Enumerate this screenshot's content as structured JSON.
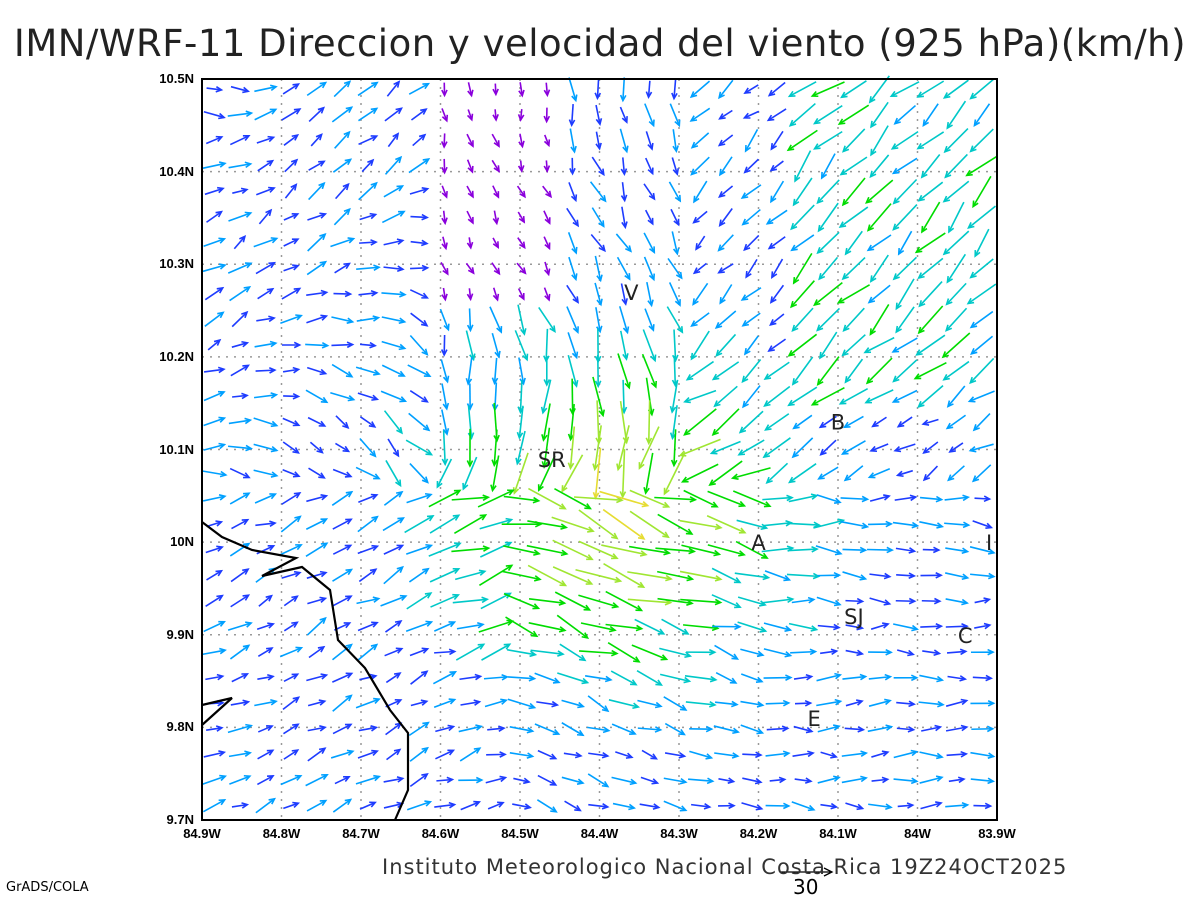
{
  "title": "IMN/WRF-11 Direccion y velocidad del viento (925 hPa)(km/h)",
  "credit": "Instituto Meteorologico Nacional Costa Rica 19Z24OCT2025",
  "software": "GrADS/COLA",
  "reference_vector": {
    "label": "30",
    "value": 30
  },
  "map": {
    "lon_range": [
      -84.9,
      -83.9
    ],
    "lat_range": [
      9.7,
      10.5
    ],
    "x_ticks": [
      "84.9W",
      "84.8W",
      "84.7W",
      "84.6W",
      "84.5W",
      "84.4W",
      "84.3W",
      "84.2W",
      "84.1W",
      "84W",
      "83.9W"
    ],
    "y_ticks": [
      "10.5N",
      "10.4N",
      "10.3N",
      "10.2N",
      "10.1N",
      "10N",
      "9.9N",
      "9.8N",
      "9.7N"
    ],
    "stations": [
      {
        "label": "V",
        "lon": -84.36,
        "lat": 10.27
      },
      {
        "label": "B",
        "lon": -84.1,
        "lat": 10.13
      },
      {
        "label": "SR",
        "lon": -84.46,
        "lat": 10.09
      },
      {
        "label": "A",
        "lon": -84.2,
        "lat": 10.0
      },
      {
        "label": "I",
        "lon": -83.91,
        "lat": 10.0
      },
      {
        "label": "SJ",
        "lon": -84.08,
        "lat": 9.92
      },
      {
        "label": "C",
        "lon": -83.94,
        "lat": 9.9
      },
      {
        "label": "E",
        "lon": -84.13,
        "lat": 9.81
      }
    ],
    "speed_colors": [
      "#8a00dc",
      "#1e3cff",
      "#00a0ff",
      "#00c8c8",
      "#00dc00",
      "#a0e632",
      "#e6dc32",
      "#f08228",
      "#fa3c3c"
    ]
  }
}
